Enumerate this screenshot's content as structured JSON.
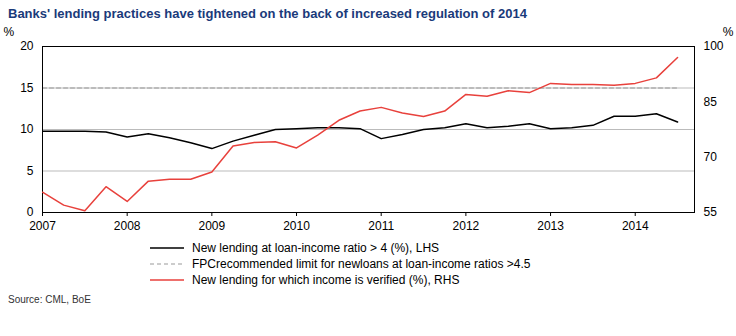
{
  "chart_data": {
    "type": "line",
    "title": "Banks' lending practices have tightened on the back of increased regulation of 2014",
    "source": "Source: CML, BoE",
    "x": [
      2007,
      2007.25,
      2007.5,
      2007.75,
      2008,
      2008.25,
      2008.5,
      2008.75,
      2009,
      2009.25,
      2009.5,
      2009.75,
      2010,
      2010.25,
      2010.5,
      2010.75,
      2011,
      2011.25,
      2011.5,
      2011.75,
      2012,
      2012.25,
      2012.5,
      2012.75,
      2013,
      2013.25,
      2013.5,
      2013.75,
      2014,
      2014.25,
      2014.5
    ],
    "xlim": [
      2007,
      2014.7
    ],
    "xticks": [
      2007,
      2008,
      2009,
      2010,
      2011,
      2012,
      2013,
      2014
    ],
    "ylim": [
      0,
      20
    ],
    "yticks": [
      0,
      5,
      10,
      15,
      20
    ],
    "y_label": "%",
    "y2lim": [
      55,
      100
    ],
    "y2ticks": [
      55,
      70,
      85,
      100
    ],
    "y2_label": "%",
    "grid": true,
    "legend": "bottom",
    "series": [
      {
        "name": "New lending at loan-income ratio > 4 (%), LHS",
        "color": "#000000",
        "line_style": "solid",
        "axis": "y",
        "values": [
          9.8,
          9.8,
          9.8,
          9.7,
          9.1,
          9.5,
          9.0,
          8.4,
          7.7,
          8.6,
          9.3,
          10.0,
          10.1,
          10.2,
          10.2,
          10.1,
          8.9,
          9.4,
          10.0,
          10.2,
          10.7,
          10.2,
          10.4,
          10.7,
          10.1,
          10.2,
          10.5,
          11.6,
          11.6,
          11.9,
          10.9
        ]
      },
      {
        "name": "FPCrecommended limit for newloans at loan-income ratios >4.5",
        "color": "#999999",
        "line_style": "dashed",
        "axis": "y",
        "values": [
          15,
          15,
          15,
          15,
          15,
          15,
          15,
          15,
          15,
          15,
          15,
          15,
          15,
          15,
          15,
          15,
          15,
          15,
          15,
          15,
          15,
          15,
          15,
          15,
          15,
          15,
          15,
          15,
          15,
          15,
          15
        ]
      },
      {
        "name": "New lending for which income is verified (%), RHS",
        "color": "#e8413c",
        "line_style": "solid",
        "axis": "y2",
        "values": [
          60.5,
          57,
          55.5,
          62,
          58,
          63.5,
          64,
          64,
          66,
          73,
          74,
          74.2,
          72.5,
          76,
          80,
          82.5,
          83.5,
          82,
          81,
          82.5,
          87,
          86.5,
          88,
          87.5,
          90,
          89.7,
          89.7,
          89.5,
          90,
          91.5,
          97
        ]
      }
    ]
  }
}
